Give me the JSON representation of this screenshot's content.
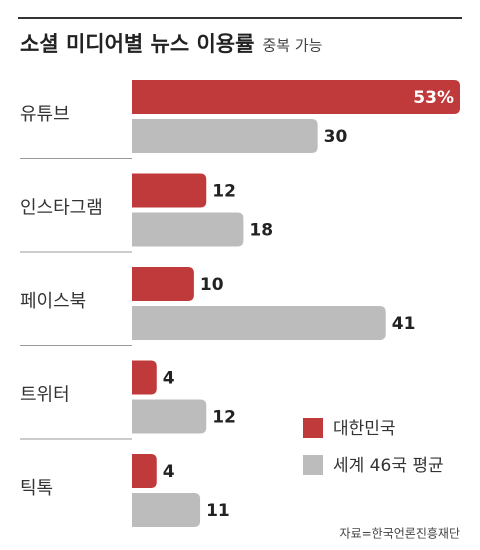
{
  "chart_data": {
    "type": "bar",
    "orientation": "horizontal",
    "title": "소셜 미디어별 뉴스 이용률",
    "subtitle": "중복 가능",
    "categories": [
      "유튜브",
      "인스타그램",
      "페이스북",
      "트위터",
      "틱톡"
    ],
    "series": [
      {
        "name": "대한민국",
        "color": "#c0393b",
        "values": [
          53,
          12,
          10,
          4,
          4
        ],
        "value_labels": [
          "53%",
          "12",
          "10",
          "4",
          "4"
        ]
      },
      {
        "name": "세계 46국 평균",
        "color": "#bcbcbc",
        "values": [
          30,
          18,
          41,
          12,
          11
        ]
      }
    ],
    "source": "자료=한국언론진흥재단"
  }
}
